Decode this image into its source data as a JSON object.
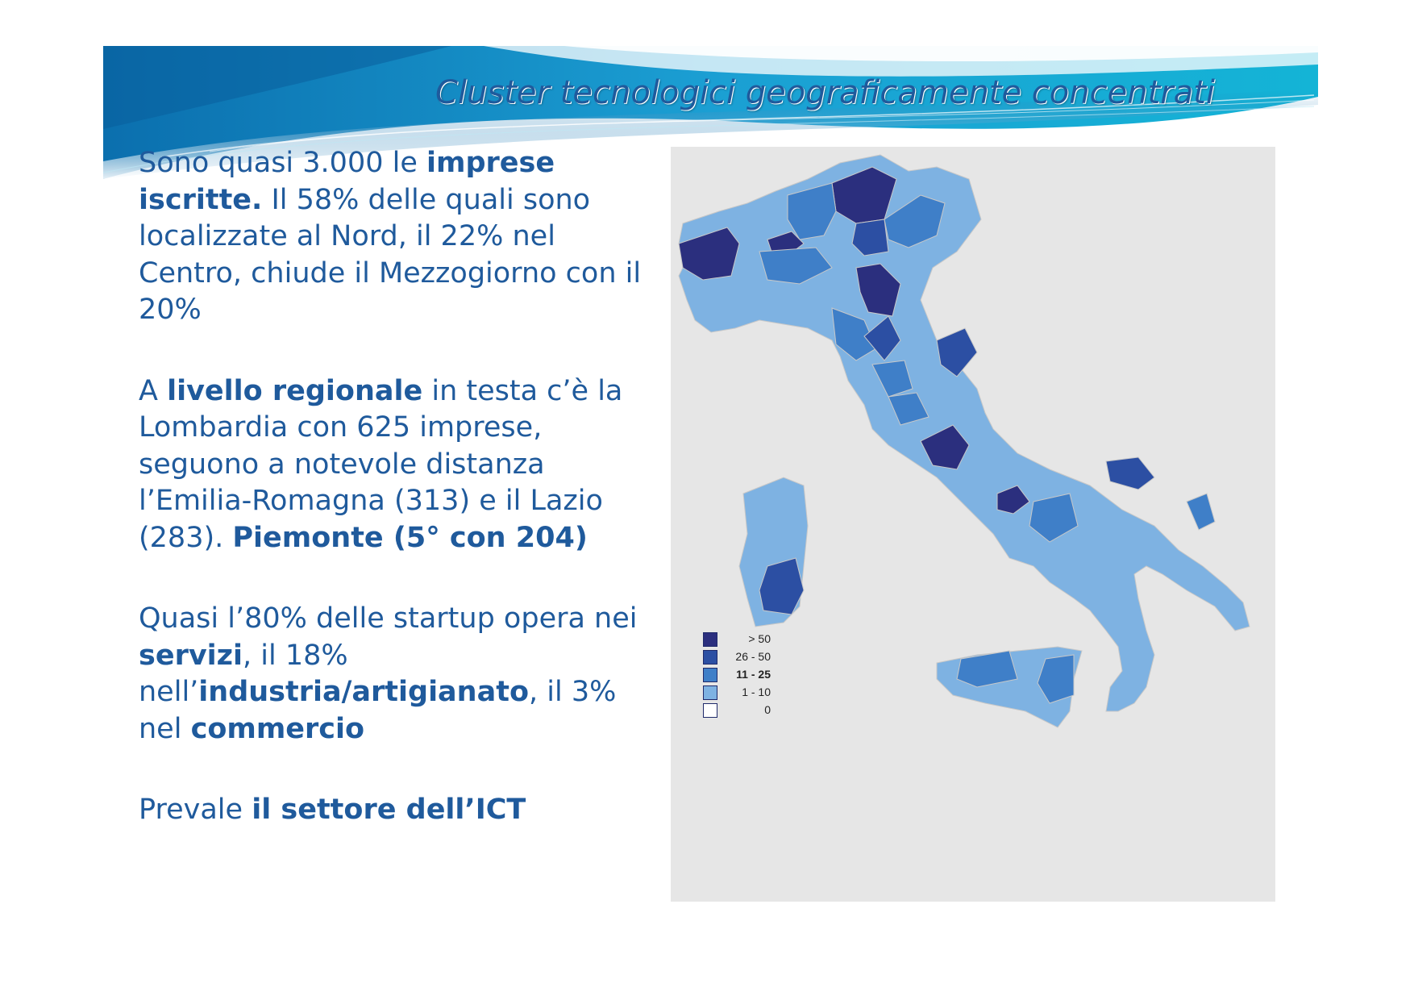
{
  "slide": {
    "title": "Cluster tecnologici geograficamente concentrati"
  },
  "paragraphs": [
    {
      "runs": [
        {
          "text": "Sono quasi 3.000 le ",
          "bold": false
        },
        {
          "text": "imprese iscritte.",
          "bold": true
        },
        {
          "text": " Il 58% delle quali sono localizzate al Nord, il 22% nel Centro, chiude il Mezzogiorno con il 20%",
          "bold": false
        }
      ]
    },
    {
      "runs": [
        {
          "text": "A ",
          "bold": false
        },
        {
          "text": "livello regionale",
          "bold": true
        },
        {
          "text": " in testa c’è la Lombardia con 625 imprese, seguono a notevole distanza l’Emilia-Romagna (313) e il Lazio (283). ",
          "bold": false
        },
        {
          "text": "Piemonte (5° con 204)",
          "bold": true
        }
      ]
    },
    {
      "runs": [
        {
          "text": "Quasi l’80% delle startup opera nei ",
          "bold": false
        },
        {
          "text": "servizi",
          "bold": true
        },
        {
          "text": ", il 18% nell’",
          "bold": false
        },
        {
          "text": "industria/artigianato",
          "bold": true
        },
        {
          "text": ", il 3% nel ",
          "bold": false
        },
        {
          "text": "commercio",
          "bold": true
        }
      ]
    },
    {
      "runs": [
        {
          "text": "Prevale ",
          "bold": false
        },
        {
          "text": "il settore dell’ICT",
          "bold": true
        }
      ]
    }
  ],
  "map": {
    "background_color": "#e6e6e6",
    "legend": [
      {
        "label": "> 50",
        "color": "#2b2f7e",
        "bold": false
      },
      {
        "label": "26 - 50",
        "color": "#2c4fa3",
        "bold": false
      },
      {
        "label": "11 - 25",
        "color": "#3f7fc8",
        "bold": true
      },
      {
        "label": "1 - 10",
        "color": "#7eb2e2",
        "bold": false
      },
      {
        "label": "0",
        "color": "#ffffff",
        "bold": false
      }
    ]
  }
}
